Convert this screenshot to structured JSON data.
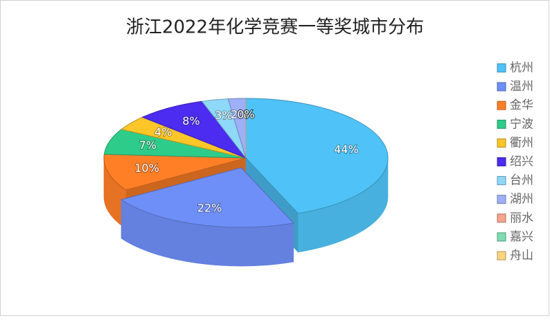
{
  "chart_data": {
    "type": "pie3d",
    "title": "浙江2022年化学竞赛一等奖城市分布",
    "categories": [
      "杭州",
      "温州",
      "金华",
      "宁波",
      "衢州",
      "绍兴",
      "台州",
      "湖州",
      "丽水",
      "嘉兴",
      "舟山"
    ],
    "values": [
      44,
      22,
      10,
      7,
      4,
      8,
      3,
      2,
      0,
      0,
      0
    ],
    "value_labels": [
      "44%",
      "22%",
      "10%",
      "7%",
      "4%",
      "8%",
      "3%",
      "2%",
      "0%",
      "0%",
      "0%"
    ],
    "colors": [
      "#4fc3f7",
      "#6f8ff8",
      "#ff7f27",
      "#2ecc8a",
      "#ffc629",
      "#4b2cf0",
      "#8ed8f8",
      "#9eb0f8",
      "#f4a58a",
      "#7ddcb0",
      "#f9d57f"
    ],
    "exploded": [
      "温州"
    ],
    "legend_position": "right"
  }
}
